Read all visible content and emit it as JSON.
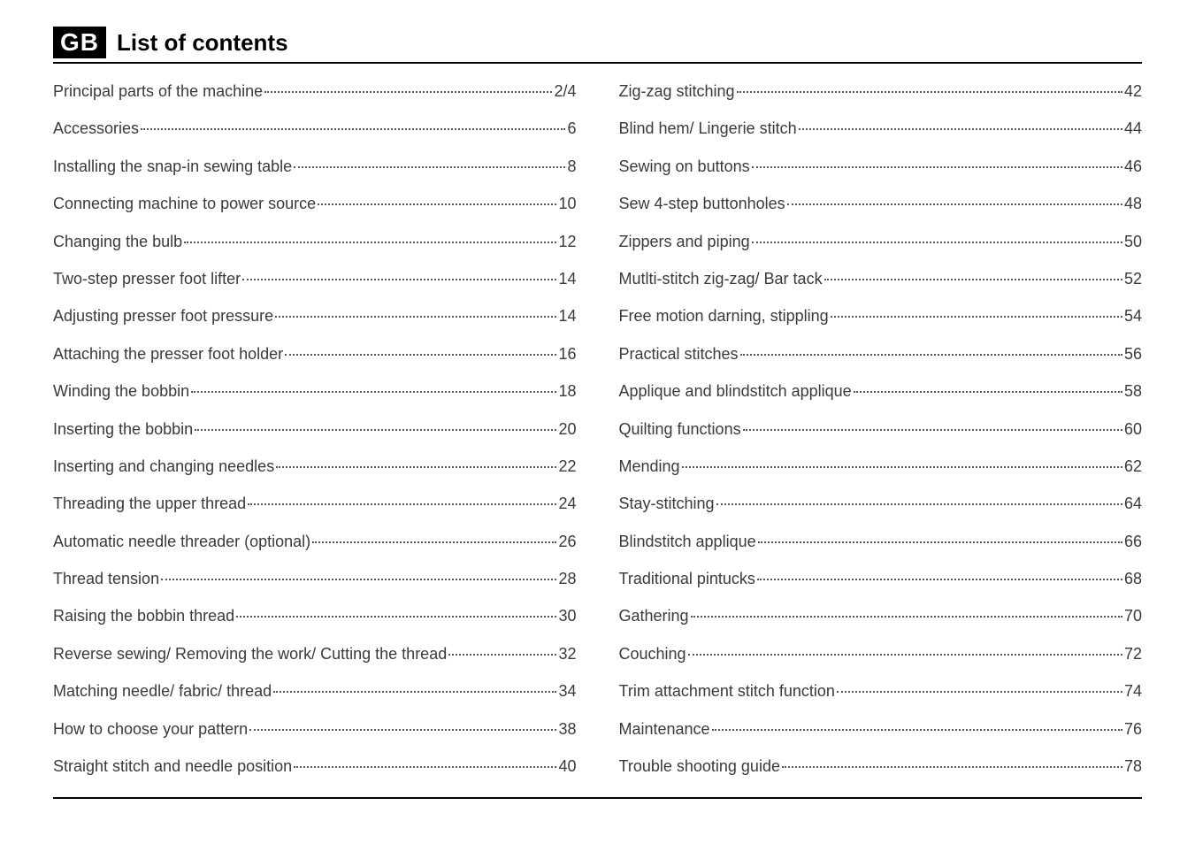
{
  "header": {
    "badge": "GB",
    "title": "List of contents"
  },
  "columns": {
    "left": [
      {
        "label": "Principal parts of the machine",
        "page": "2/4"
      },
      {
        "label": "Accessories",
        "page": "6"
      },
      {
        "label": "Installing the snap-in sewing table",
        "page": "8"
      },
      {
        "label": "Connecting machine to power source",
        "page": "10"
      },
      {
        "label": "Changing the bulb",
        "page": "12"
      },
      {
        "label": "Two-step presser foot lifter",
        "page": "14"
      },
      {
        "label": "Adjusting presser foot pressure",
        "page": "14"
      },
      {
        "label": "Attaching the presser foot holder",
        "page": "16"
      },
      {
        "label": "Winding the bobbin",
        "page": "18"
      },
      {
        "label": "Inserting the bobbin",
        "page": "20"
      },
      {
        "label": "Inserting and changing needles",
        "page": "22"
      },
      {
        "label": "Threading the upper thread",
        "page": "24"
      },
      {
        "label": "Automatic needle threader (optional)",
        "page": "26"
      },
      {
        "label": "Thread tension",
        "page": "28"
      },
      {
        "label": "Raising the bobbin thread",
        "page": "30"
      },
      {
        "label": "Reverse sewing/ Removing the work/ Cutting the thread",
        "page": "32"
      },
      {
        "label": "Matching needle/ fabric/ thread",
        "page": "34"
      },
      {
        "label": "How to choose your pattern",
        "page": "38"
      },
      {
        "label": "Straight stitch and needle position",
        "page": "40"
      }
    ],
    "right": [
      {
        "label": "Zig-zag stitching",
        "page": "42"
      },
      {
        "label": "Blind hem/ Lingerie stitch",
        "page": "44"
      },
      {
        "label": "Sewing on buttons",
        "page": "46"
      },
      {
        "label": "Sew 4-step buttonholes",
        "page": "48"
      },
      {
        "label": "Zippers and piping",
        "page": "50"
      },
      {
        "label": "Mutlti-stitch zig-zag/ Bar tack",
        "page": "52"
      },
      {
        "label": "Free motion darning, stippling",
        "page": "54"
      },
      {
        "label": "Practical stitches",
        "page": "56"
      },
      {
        "label": "Applique and blindstitch applique",
        "page": "58"
      },
      {
        "label": "Quilting functions",
        "page": "60"
      },
      {
        "label": "Mending",
        "page": "62"
      },
      {
        "label": "Stay-stitching",
        "page": "64"
      },
      {
        "label": "Blindstitch applique",
        "page": "66"
      },
      {
        "label": "Traditional pintucks",
        "page": "68"
      },
      {
        "label": "Gathering",
        "page": "70"
      },
      {
        "label": "Couching",
        "page": "72"
      },
      {
        "label": "Trim attachment stitch function",
        "page": "74"
      },
      {
        "label": "Maintenance",
        "page": "76"
      },
      {
        "label": "Trouble shooting guide",
        "page": "78"
      }
    ]
  },
  "style": {
    "background_color": "#ffffff",
    "text_color": "#3a3a3a",
    "badge_bg": "#000000",
    "badge_fg": "#ffffff",
    "rule_color": "#000000",
    "leader_color": "#555555",
    "title_fontsize": 26,
    "entry_fontsize": 18,
    "entry_spacing": 19
  }
}
